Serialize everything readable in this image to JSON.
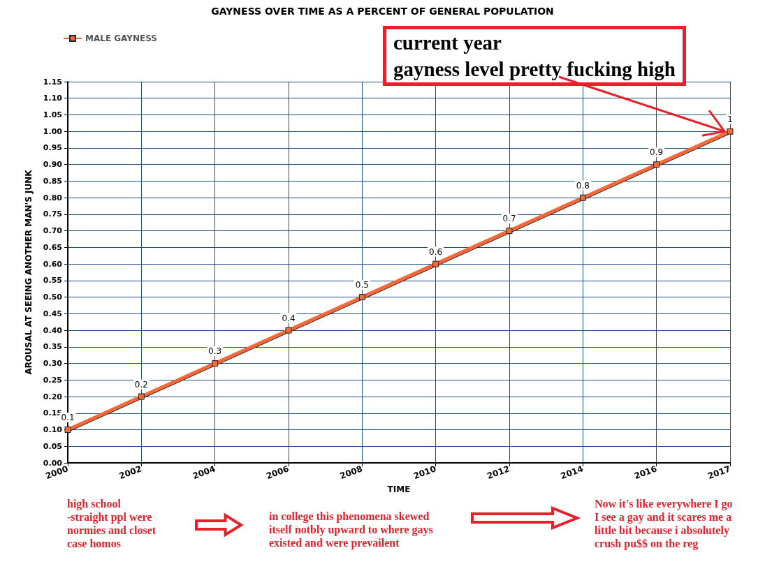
{
  "chart_data": {
    "type": "line",
    "title": "GAYNESS OVER TIME AS A PERCENT OF GENERAL POPULATION",
    "xlabel": "TIME",
    "ylabel": "AROUSAL AT SEEING ANOTHER MAN'S JUNK",
    "categories": [
      "2000",
      "2002",
      "2004",
      "2006",
      "2008",
      "2010",
      "2012",
      "2014",
      "2016",
      "2017"
    ],
    "series": [
      {
        "name": "MALE GAYNESS",
        "color": "#f26b3a",
        "values": [
          0.1,
          0.2,
          0.3,
          0.4,
          0.5,
          0.6,
          0.7,
          0.8,
          0.9,
          1
        ]
      }
    ],
    "ylim": [
      0,
      1.15
    ],
    "yticks": [
      {
        "value": 0,
        "label": "0.00"
      },
      {
        "value": 0.05,
        "label": "0.05"
      },
      {
        "value": 0.1,
        "label": "0.10"
      },
      {
        "value": 0.15,
        "label": "0.15"
      },
      {
        "value": 0.2,
        "label": "0.20"
      },
      {
        "value": 0.25,
        "label": "0.25"
      },
      {
        "value": 0.3,
        "label": "0.30"
      },
      {
        "value": 0.35,
        "label": "0.35"
      },
      {
        "value": 0.4,
        "label": "0.40"
      },
      {
        "value": 0.45,
        "label": "0.45"
      },
      {
        "value": 0.5,
        "label": "0.50"
      },
      {
        "value": 0.55,
        "label": "0.55"
      },
      {
        "value": 0.6,
        "label": "0.60"
      },
      {
        "value": 0.65,
        "label": "0.65"
      },
      {
        "value": 0.7,
        "label": "0.70"
      },
      {
        "value": 0.75,
        "label": "0.75"
      },
      {
        "value": 0.8,
        "label": "0.80"
      },
      {
        "value": 0.85,
        "label": "0.85"
      },
      {
        "value": 0.9,
        "label": "0.90"
      },
      {
        "value": 0.95,
        "label": "0.95"
      },
      {
        "value": 1,
        "label": "1.00"
      },
      {
        "value": 1.05,
        "label": "1.05"
      },
      {
        "value": 1.1,
        "label": "1.10"
      },
      {
        "value": 1.15,
        "label": "1.15"
      }
    ],
    "grid": true,
    "legend": "top left",
    "marker": "square",
    "line_style": "solid",
    "data_labels": true,
    "annotations": [
      {
        "text": "current year\ngayness level pretty fucking high",
        "x": "2017",
        "y": 1
      },
      "high school\n-straight ppl were\nnormies and closet\ncase homos",
      "in college this phenomena skewed\nitself notbly upward to where gays\nexisted and were prevailent",
      "Now it's like everywhere I go\nI see a gay and it scares me a\nlittle bit because i absolutely\ncrush pu$$ on the reg"
    ]
  }
}
